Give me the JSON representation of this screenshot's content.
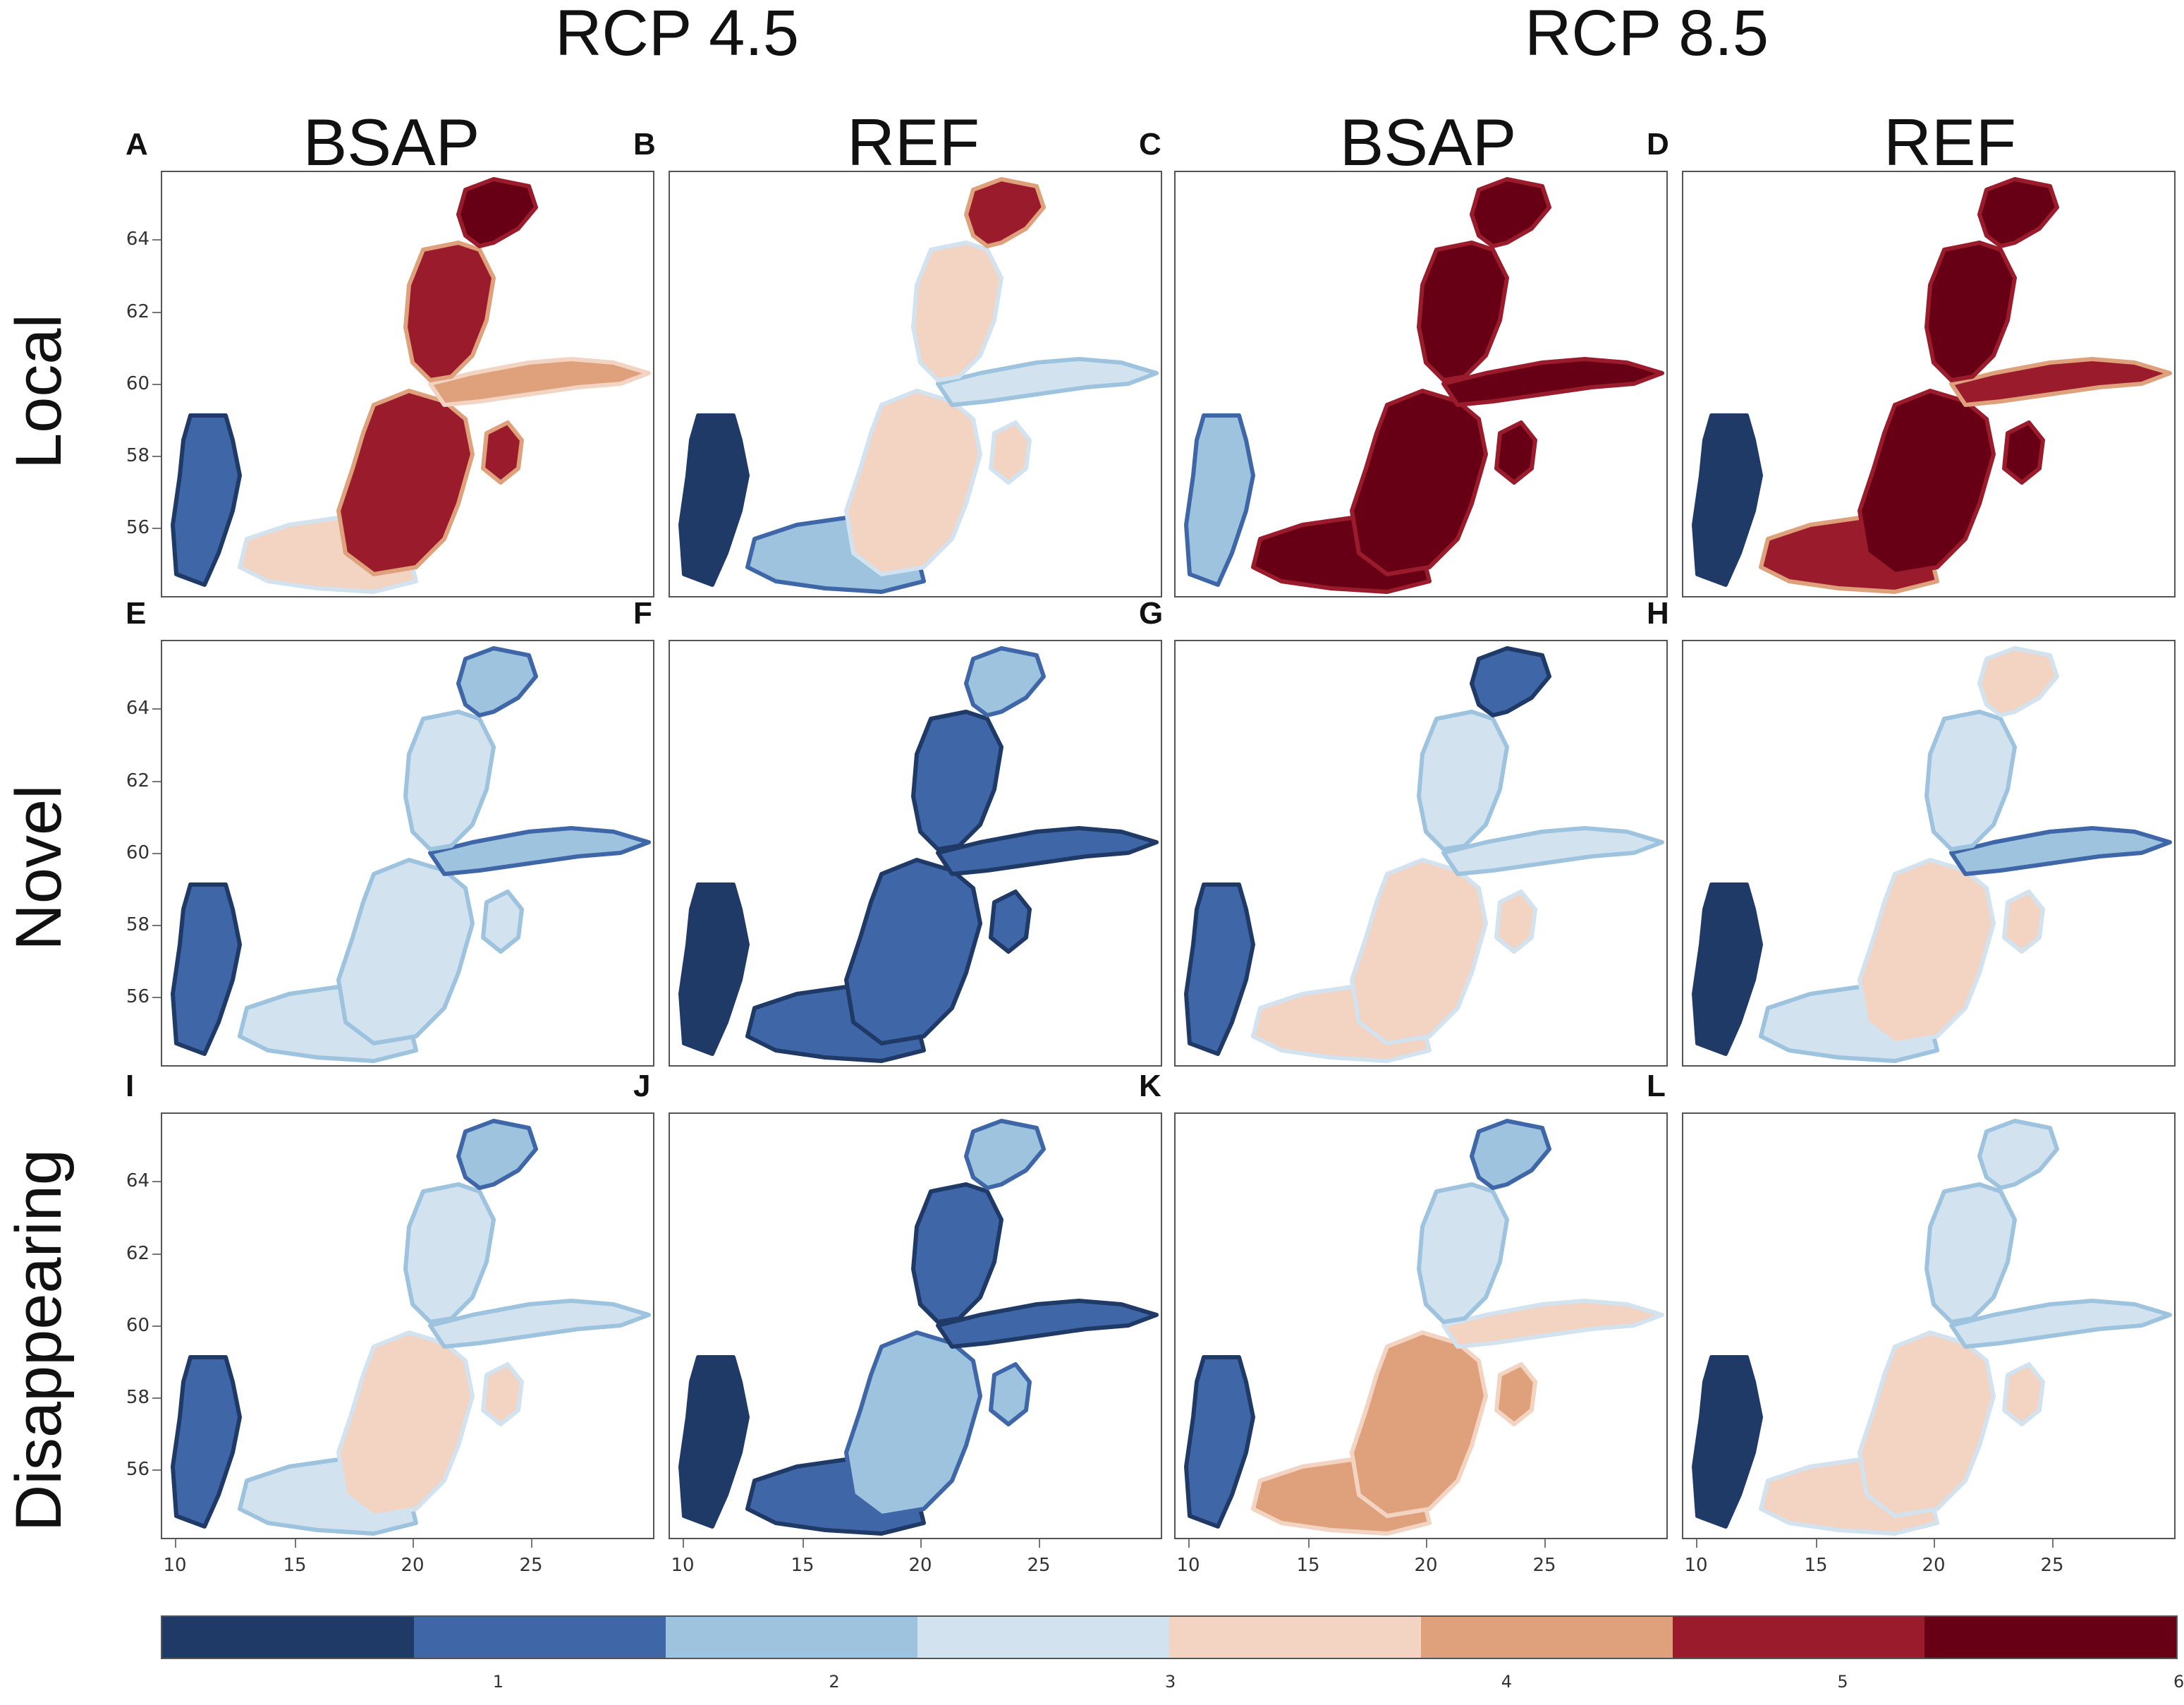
{
  "scenarios": [
    "RCP 4.5",
    "RCP 8.5"
  ],
  "columns": [
    "BSAP",
    "REF",
    "BSAP",
    "REF"
  ],
  "rows": [
    "Local",
    "Novel",
    "Disappearing"
  ],
  "panel_letters": [
    "A",
    "B",
    "C",
    "D",
    "E",
    "F",
    "G",
    "H",
    "I",
    "J",
    "K",
    "L"
  ],
  "latitude_ticks": [
    "64",
    "62",
    "60",
    "58",
    "56"
  ],
  "longitude_ticks": [
    "10",
    "15",
    "20",
    "25"
  ],
  "colorbar": {
    "colors": [
      "#1f3a66",
      "#3f67a8",
      "#9dc3df",
      "#d2e3ef",
      "#f3d3c1",
      "#dea17c",
      "#9a1b2b",
      "#670015"
    ],
    "tick_labels": [
      "1",
      "2",
      "3",
      "4",
      "5",
      "6"
    ]
  },
  "panel_fill_levels": [
    {
      "panel": "A",
      "north": 7,
      "bothnian_sea": 6,
      "gulf_finland": 5,
      "proper": 6,
      "south": 4,
      "kattegat": 1
    },
    {
      "panel": "B",
      "north": 6,
      "bothnian_sea": 4,
      "gulf_finland": 3,
      "proper": 4,
      "south": 2,
      "kattegat": 0
    },
    {
      "panel": "C",
      "north": 7,
      "bothnian_sea": 7,
      "gulf_finland": 7,
      "proper": 7,
      "south": 7,
      "kattegat": 2
    },
    {
      "panel": "D",
      "north": 7,
      "bothnian_sea": 7,
      "gulf_finland": 6,
      "proper": 7,
      "south": 6,
      "kattegat": 0
    },
    {
      "panel": "E",
      "north": 2,
      "bothnian_sea": 3,
      "gulf_finland": 2,
      "proper": 3,
      "south": 3,
      "kattegat": 1
    },
    {
      "panel": "F",
      "north": 2,
      "bothnian_sea": 1,
      "gulf_finland": 1,
      "proper": 1,
      "south": 1,
      "kattegat": 0
    },
    {
      "panel": "G",
      "north": 1,
      "bothnian_sea": 3,
      "gulf_finland": 3,
      "proper": 4,
      "south": 4,
      "kattegat": 1
    },
    {
      "panel": "H",
      "north": 4,
      "bothnian_sea": 3,
      "gulf_finland": 2,
      "proper": 4,
      "south": 3,
      "kattegat": 0
    },
    {
      "panel": "I",
      "north": 2,
      "bothnian_sea": 3,
      "gulf_finland": 3,
      "proper": 4,
      "south": 3,
      "kattegat": 1
    },
    {
      "panel": "J",
      "north": 2,
      "bothnian_sea": 1,
      "gulf_finland": 1,
      "proper": 2,
      "south": 1,
      "kattegat": 0
    },
    {
      "panel": "K",
      "north": 2,
      "bothnian_sea": 3,
      "gulf_finland": 4,
      "proper": 5,
      "south": 5,
      "kattegat": 1
    },
    {
      "panel": "L",
      "north": 3,
      "bothnian_sea": 3,
      "gulf_finland": 3,
      "proper": 4,
      "south": 4,
      "kattegat": 0
    }
  ]
}
